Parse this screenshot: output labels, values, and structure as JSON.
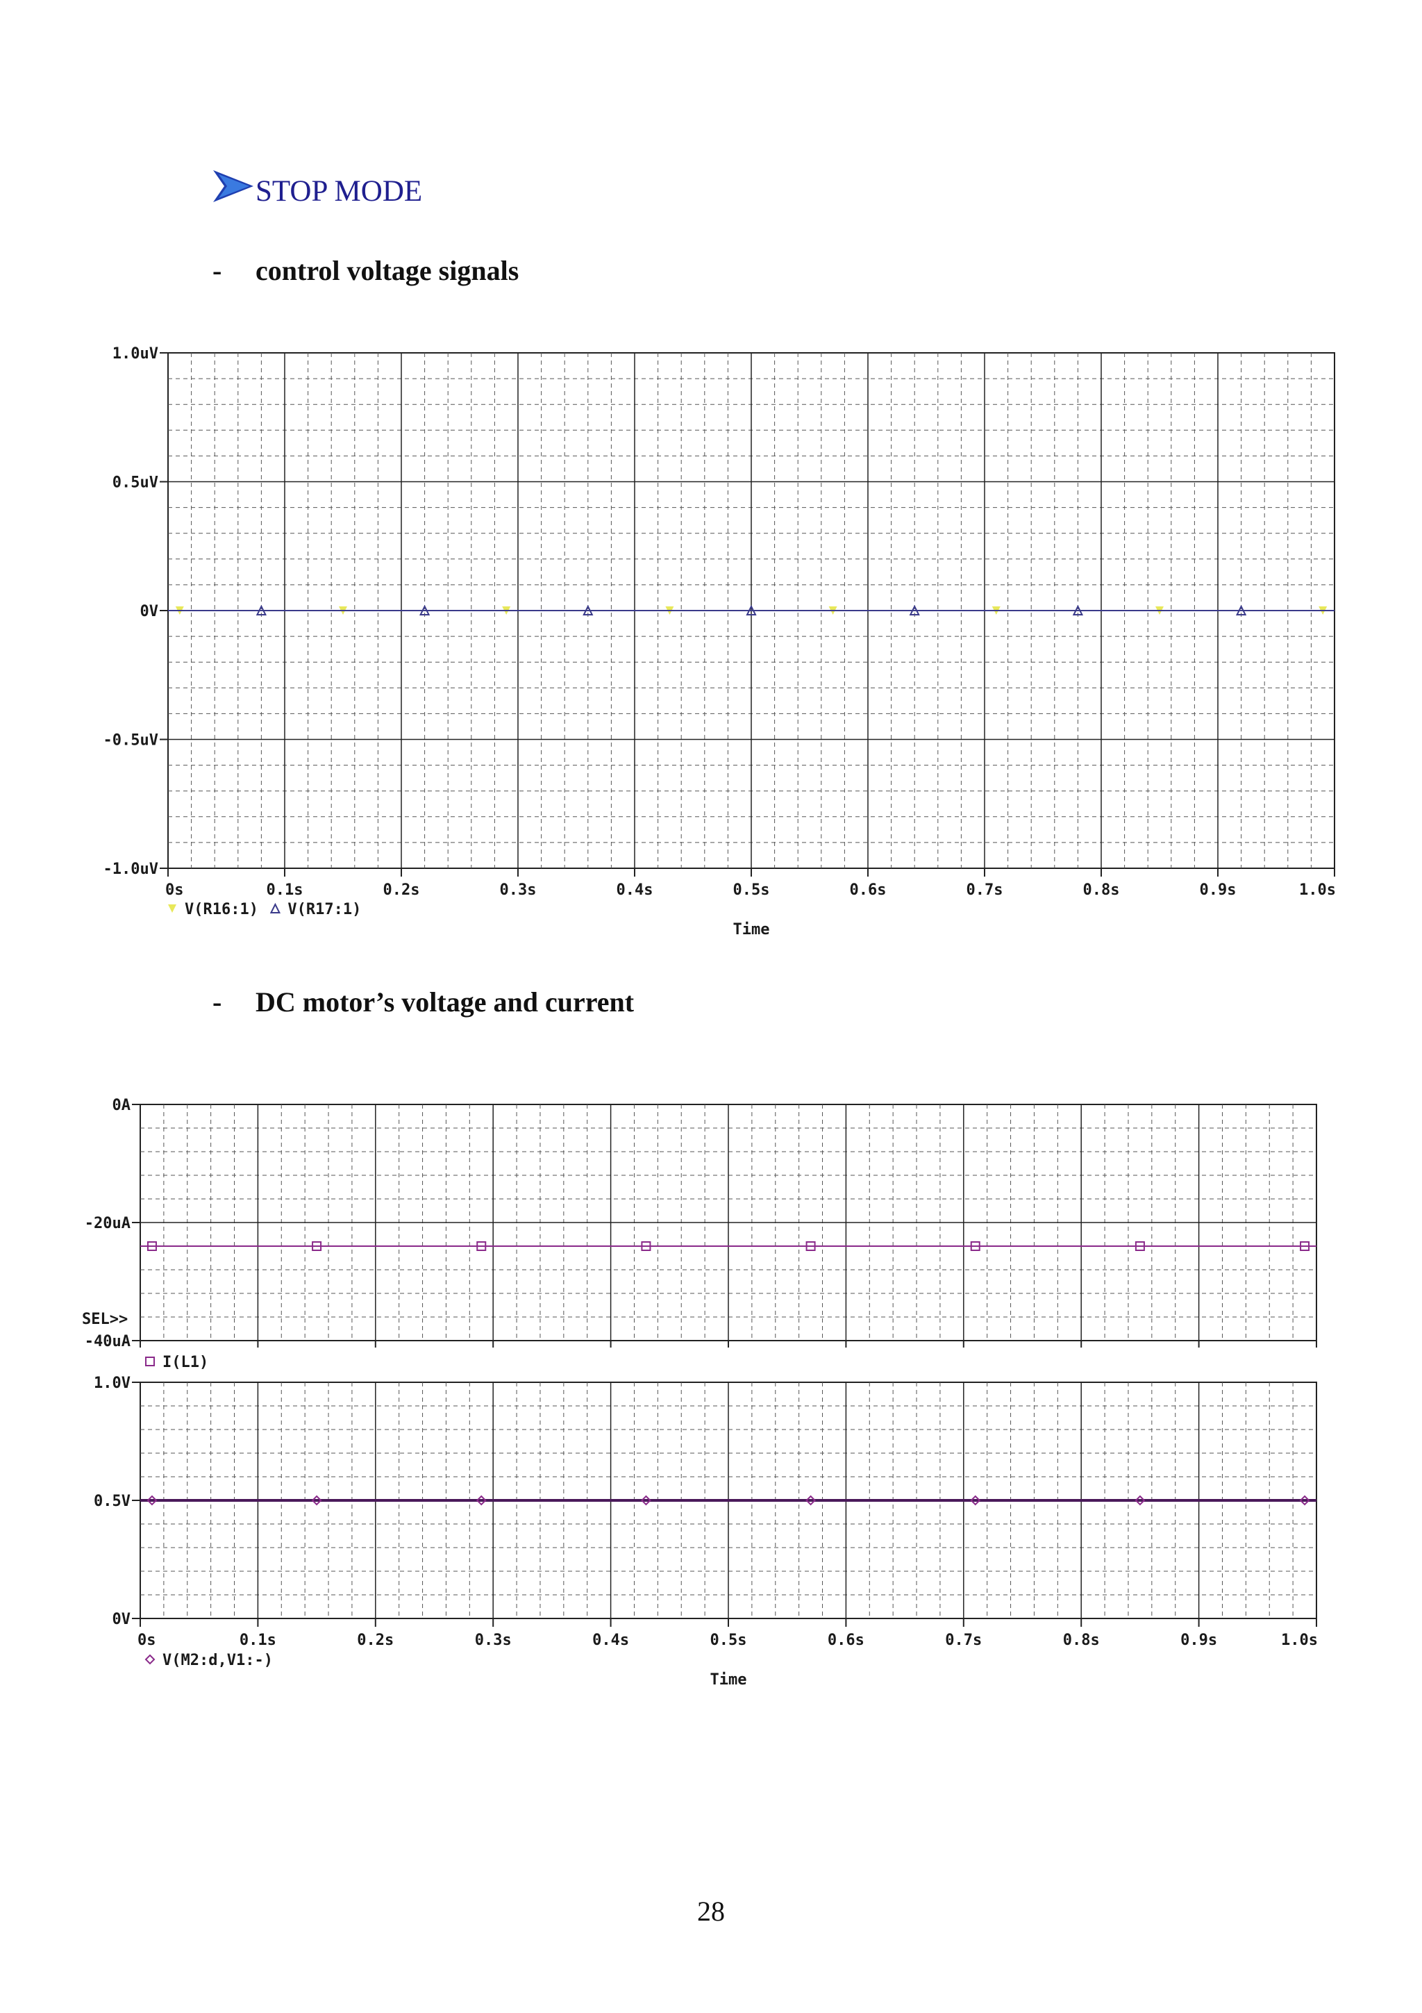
{
  "section": {
    "title": "STOP MODE",
    "icon": "arrow-right-icon"
  },
  "bullets": [
    {
      "dash": "-",
      "text": "control voltage signals"
    },
    {
      "dash": "-",
      "text": "DC motor’s voltage and current"
    }
  ],
  "page_number": "28",
  "colors": {
    "title": "#1f1f8f",
    "series_yellow": "#e8e85a",
    "series_blue": "#3a3a8a",
    "series_purple": "#8a2a8a"
  },
  "chart_data": [
    {
      "type": "line",
      "title": "",
      "xlabel": "Time",
      "ylabel": "",
      "x_ticks": [
        "0s",
        "0.1s",
        "0.2s",
        "0.3s",
        "0.4s",
        "0.5s",
        "0.6s",
        "0.7s",
        "0.8s",
        "0.9s",
        "1.0s"
      ],
      "y_ticks": [
        "-1.0uV",
        "-0.5uV",
        "0V",
        "0.5uV",
        "1.0uV"
      ],
      "xlim": [
        0,
        1.0
      ],
      "ylim": [
        -1.0,
        1.0
      ],
      "y_unit": "uV",
      "grid": true,
      "series": [
        {
          "name": "V(R16:1)",
          "marker": "▼",
          "color": "#e8e85a",
          "x": [
            0,
            1.0
          ],
          "y": [
            0,
            0
          ]
        },
        {
          "name": "V(R17:1)",
          "marker": "▲",
          "color": "#3a3a8a",
          "x": [
            0,
            1.0
          ],
          "y": [
            0,
            0
          ]
        }
      ]
    },
    {
      "type": "line",
      "title": "",
      "xlabel": "",
      "ylabel": "",
      "selector": "SEL>>",
      "y_ticks": [
        "-40uA",
        "-20uA",
        "0A"
      ],
      "xlim": [
        0,
        1.0
      ],
      "ylim": [
        -40,
        0
      ],
      "y_unit": "uA",
      "grid": true,
      "series": [
        {
          "name": "I(L1)",
          "marker": "□",
          "color": "#8a2a8a",
          "x": [
            0,
            1.0
          ],
          "y": [
            -24,
            -24
          ]
        }
      ]
    },
    {
      "type": "line",
      "title": "",
      "xlabel": "Time",
      "ylabel": "",
      "x_ticks": [
        "0s",
        "0.1s",
        "0.2s",
        "0.3s",
        "0.4s",
        "0.5s",
        "0.6s",
        "0.7s",
        "0.8s",
        "0.9s",
        "1.0s"
      ],
      "y_ticks": [
        "0V",
        "0.5V",
        "1.0V"
      ],
      "xlim": [
        0,
        1.0
      ],
      "ylim": [
        0,
        1.0
      ],
      "y_unit": "V",
      "grid": true,
      "series": [
        {
          "name": "V(M2:d,V1:-)",
          "marker": "◇",
          "color": "#8a2a8a",
          "x": [
            0,
            1.0
          ],
          "y": [
            0.5,
            0.5
          ]
        }
      ]
    }
  ]
}
